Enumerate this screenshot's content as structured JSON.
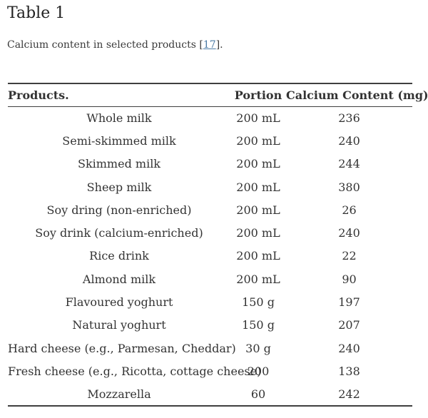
{
  "header": {
    "title": "Table 1",
    "caption_prefix": "Calcium content in selected products [",
    "caption_link": "17",
    "caption_suffix": "]."
  },
  "table": {
    "columns": [
      {
        "label": "Products."
      },
      {
        "label": "Portion"
      },
      {
        "label": "Calcium Content (mg)"
      }
    ],
    "rows": [
      {
        "product": "Whole milk",
        "portion": "200 mL",
        "calcium": "236"
      },
      {
        "product": "Semi-skimmed milk",
        "portion": "200 mL",
        "calcium": "240"
      },
      {
        "product": "Skimmed milk",
        "portion": "200 mL",
        "calcium": "244"
      },
      {
        "product": "Sheep milk",
        "portion": "200 mL",
        "calcium": "380"
      },
      {
        "product": "Soy dring (non-enriched)",
        "portion": "200 mL",
        "calcium": "26"
      },
      {
        "product": "Soy drink (calcium-enriched)",
        "portion": "200 mL",
        "calcium": "240"
      },
      {
        "product": "Rice drink",
        "portion": "200 mL",
        "calcium": "22"
      },
      {
        "product": "Almond milk",
        "portion": "200 mL",
        "calcium": "90"
      },
      {
        "product": "Flavoured yoghurt",
        "portion": "150 g",
        "calcium": "197"
      },
      {
        "product": "Natural yoghurt",
        "portion": "150 g",
        "calcium": "207"
      },
      {
        "product": "Hard cheese (e.g., Parmesan, Cheddar)",
        "portion": "30 g",
        "calcium": "240"
      },
      {
        "product": "Fresh cheese (e.g., Ricotta, cottage cheese)",
        "portion": "200",
        "calcium": "138"
      },
      {
        "product": "Mozzarella",
        "portion": "60",
        "calcium": "242"
      }
    ]
  },
  "colors": {
    "text": "#333333",
    "title": "#222222",
    "link": "#4d7ca6",
    "rule": "#3f3f3f"
  }
}
